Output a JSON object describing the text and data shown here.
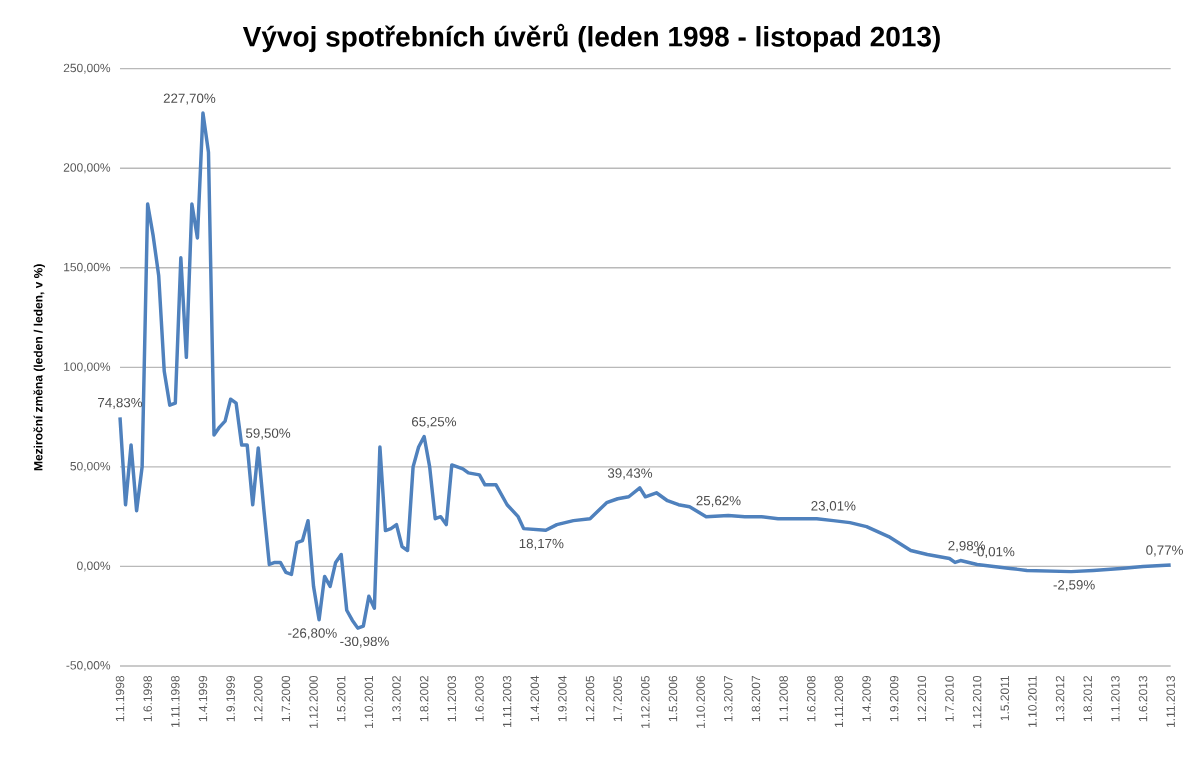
{
  "chart_data": {
    "type": "line",
    "title": "Vývoj spotřebních úvěrů (leden 1998 - listopad 2013)",
    "ylabel": "Meziroční změna (leden / leden, v %)",
    "x": [
      "1998-01",
      "1998-02",
      "1998-03",
      "1998-04",
      "1998-05",
      "1998-06",
      "1998-07",
      "1998-08",
      "1998-09",
      "1998-10",
      "1998-11",
      "1998-12",
      "1999-01",
      "1999-02",
      "1999-03",
      "1999-04",
      "1999-05",
      "1999-06",
      "1999-07",
      "1999-08",
      "1999-09",
      "1999-10",
      "1999-11",
      "1999-12",
      "2000-01",
      "2000-02",
      "2000-03",
      "2000-04",
      "2000-05",
      "2000-06",
      "2000-07",
      "2000-08",
      "2000-09",
      "2000-10",
      "2000-11",
      "2000-12",
      "2001-01",
      "2001-02",
      "2001-03",
      "2001-04",
      "2001-05",
      "2001-06",
      "2001-07",
      "2001-08",
      "2001-09",
      "2001-10",
      "2001-11",
      "2001-12",
      "2002-01",
      "2002-02",
      "2002-03",
      "2002-04",
      "2002-05",
      "2002-06",
      "2002-07",
      "2002-08",
      "2002-09",
      "2002-10",
      "2002-11",
      "2002-12",
      "2003-01",
      "2003-02",
      "2003-03",
      "2003-04",
      "2003-06",
      "2003-07",
      "2003-09",
      "2003-11",
      "2004-01",
      "2004-02",
      "2004-06",
      "2004-08",
      "2004-11",
      "2005-02",
      "2005-05",
      "2005-07",
      "2005-09",
      "2005-11",
      "2005-12",
      "2006-02",
      "2006-04",
      "2006-06",
      "2006-08",
      "2006-11",
      "2007-03",
      "2007-06",
      "2007-09",
      "2007-12",
      "2008-04",
      "2008-07",
      "2008-10",
      "2009-01",
      "2009-04",
      "2009-08",
      "2009-12",
      "2010-03",
      "2010-05",
      "2010-07",
      "2010-08",
      "2010-09",
      "2010-12",
      "2011-03",
      "2011-06",
      "2011-09",
      "2012-05",
      "2012-09",
      "2013-02",
      "2013-06",
      "2013-11"
    ],
    "values": [
      74.83,
      31,
      61,
      28,
      50,
      182,
      166,
      146,
      98,
      81,
      82,
      155,
      105,
      182,
      165,
      227.7,
      208,
      66,
      70,
      73,
      84,
      82,
      61,
      61,
      31,
      59.5,
      29,
      1,
      2,
      2,
      -3,
      -4,
      12,
      13,
      23,
      -10,
      -26.8,
      -5,
      -10,
      2,
      6,
      -22,
      -27,
      -30.98,
      -30,
      -15,
      -21,
      60,
      18,
      19,
      21,
      10,
      8,
      50,
      60,
      65.25,
      50,
      24,
      25,
      21,
      51,
      50,
      49,
      47,
      46,
      41,
      41,
      31,
      25,
      19,
      18.17,
      21,
      23,
      24,
      32,
      34,
      35,
      39.43,
      35,
      37,
      33,
      31,
      30,
      25,
      25.62,
      25,
      25,
      24,
      24,
      24,
      23.01,
      22,
      20,
      15,
      8,
      6,
      5,
      4,
      2,
      2.98,
      1,
      -0.01,
      -1,
      -2,
      -2.59,
      -2,
      -1,
      0,
      0.77
    ],
    "value_labels": [
      "74,83%",
      null,
      null,
      null,
      null,
      null,
      null,
      null,
      null,
      null,
      null,
      null,
      null,
      null,
      null,
      "227,70%",
      null,
      null,
      null,
      null,
      null,
      null,
      null,
      null,
      null,
      "59,50%",
      null,
      null,
      null,
      null,
      null,
      null,
      null,
      null,
      null,
      null,
      "-26,80%",
      null,
      null,
      null,
      null,
      null,
      null,
      "-30,98%",
      null,
      null,
      null,
      null,
      null,
      null,
      null,
      null,
      null,
      null,
      null,
      "65,25%",
      null,
      null,
      null,
      null,
      null,
      null,
      null,
      null,
      null,
      null,
      null,
      null,
      null,
      null,
      "18,17%",
      null,
      null,
      null,
      null,
      null,
      null,
      "39,43%",
      null,
      null,
      null,
      null,
      null,
      null,
      "25,62%",
      null,
      null,
      null,
      null,
      null,
      "23,01%",
      null,
      null,
      null,
      null,
      null,
      null,
      null,
      null,
      "2,98%",
      null,
      "-0,01%",
      null,
      null,
      "-2,59%",
      null,
      null,
      null,
      "0,77%"
    ],
    "color": "#4f81bd",
    "xlim": [
      "1998-01",
      "2013-11"
    ],
    "xticks": [
      {
        "value": "1998-01",
        "label": "1.1.1998"
      },
      {
        "value": "1998-06",
        "label": "1.6.1998"
      },
      {
        "value": "1998-11",
        "label": "1.11.1998"
      },
      {
        "value": "1999-04",
        "label": "1.4.1999"
      },
      {
        "value": "1999-09",
        "label": "1.9.1999"
      },
      {
        "value": "2000-02",
        "label": "1.2.2000"
      },
      {
        "value": "2000-07",
        "label": "1.7.2000"
      },
      {
        "value": "2000-12",
        "label": "1.12.2000"
      },
      {
        "value": "2001-05",
        "label": "1.5.2001"
      },
      {
        "value": "2001-10",
        "label": "1.10.2001"
      },
      {
        "value": "2002-03",
        "label": "1.3.2002"
      },
      {
        "value": "2002-08",
        "label": "1.8.2002"
      },
      {
        "value": "2003-01",
        "label": "1.1.2003"
      },
      {
        "value": "2003-06",
        "label": "1.6.2003"
      },
      {
        "value": "2003-11",
        "label": "1.11.2003"
      },
      {
        "value": "2004-04",
        "label": "1.4.2004"
      },
      {
        "value": "2004-09",
        "label": "1.9.2004"
      },
      {
        "value": "2005-02",
        "label": "1.2.2005"
      },
      {
        "value": "2005-07",
        "label": "1.7.2005"
      },
      {
        "value": "2005-12",
        "label": "1.12.2005"
      },
      {
        "value": "2006-05",
        "label": "1.5.2006"
      },
      {
        "value": "2006-10",
        "label": "1.10.2006"
      },
      {
        "value": "2007-03",
        "label": "1.3.2007"
      },
      {
        "value": "2007-08",
        "label": "1.8.2007"
      },
      {
        "value": "2008-01",
        "label": "1.1.2008"
      },
      {
        "value": "2008-06",
        "label": "1.6.2008"
      },
      {
        "value": "2008-11",
        "label": "1.11.2008"
      },
      {
        "value": "2009-04",
        "label": "1.4.2009"
      },
      {
        "value": "2009-09",
        "label": "1.9.2009"
      },
      {
        "value": "2010-02",
        "label": "1.2.2010"
      },
      {
        "value": "2010-07",
        "label": "1.7.2010"
      },
      {
        "value": "2010-12",
        "label": "1.12.2010"
      },
      {
        "value": "2011-05",
        "label": "1.5.2011"
      },
      {
        "value": "2011-10",
        "label": "1.10.2011"
      },
      {
        "value": "2012-03",
        "label": "1.3.2012"
      },
      {
        "value": "2012-08",
        "label": "1.8.2012"
      },
      {
        "value": "2013-01",
        "label": "1.1.2013"
      },
      {
        "value": "2013-06",
        "label": "1.6.2013"
      },
      {
        "value": "2013-11",
        "label": "1.11.2013"
      }
    ],
    "ylim": [
      -50,
      250
    ],
    "yticks": [
      {
        "value": -50,
        "label": "-50,00%"
      },
      {
        "value": 0,
        "label": "0,00%"
      },
      {
        "value": 50,
        "label": "50,00%"
      },
      {
        "value": 100,
        "label": "100,00%"
      },
      {
        "value": 150,
        "label": "150,00%"
      },
      {
        "value": 200,
        "label": "200,00%"
      },
      {
        "value": 250,
        "label": "250,00%"
      }
    ],
    "grid": "y"
  }
}
